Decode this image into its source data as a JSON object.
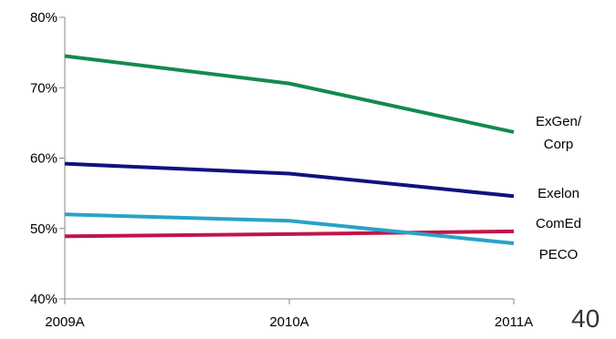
{
  "chart_data": {
    "type": "line",
    "title": "",
    "xlabel": "",
    "ylabel": "",
    "x": [
      "2009A",
      "2010A",
      "2011A"
    ],
    "ylim": [
      40,
      80
    ],
    "y_ticks": [
      "40%",
      "50%",
      "60%",
      "70%",
      "80%"
    ],
    "grid": false,
    "legend": "inline labels at right end of lines",
    "series": [
      {
        "key": "exgen",
        "label_lines": [
          "ExGen/",
          "Corp"
        ],
        "color": "#138a4e",
        "values": [
          74.5,
          70.6,
          63.7
        ]
      },
      {
        "key": "exelon",
        "label_lines": [
          "Exelon"
        ],
        "color": "#0f1280",
        "values": [
          59.2,
          57.8,
          54.6
        ]
      },
      {
        "key": "comed",
        "label_lines": [
          "ComEd"
        ],
        "color": "#c0154a",
        "values": [
          48.9,
          49.2,
          49.6
        ]
      },
      {
        "key": "peco",
        "label_lines": [
          "PECO"
        ],
        "color": "#29a2c8",
        "values": [
          52.0,
          51.1,
          47.9
        ]
      }
    ]
  },
  "page_number": "40"
}
